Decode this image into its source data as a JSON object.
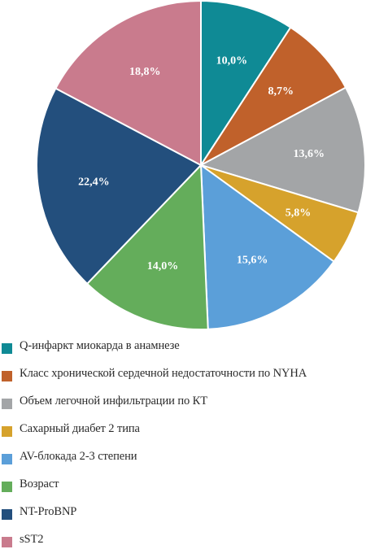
{
  "chart_data": {
    "type": "pie",
    "title": "",
    "series": [
      {
        "name": "Q-инфаркт миокарда в анамнезе",
        "value": 10.0,
        "label": "10,0%",
        "color": "#0f8a95"
      },
      {
        "name": "Класс хронической сердечной недостаточности по NYHA",
        "value": 8.7,
        "label": "8,7%",
        "color": "#c0612b"
      },
      {
        "name": "Объем легочной инфильтрации по КТ",
        "value": 13.6,
        "label": "13,6%",
        "color": "#a3a5a7"
      },
      {
        "name": "Сахарный диабет 2 типа",
        "value": 5.8,
        "label": "5,8%",
        "color": "#d6a22c"
      },
      {
        "name": "AV-блокада 2-3 степени",
        "value": 15.6,
        "label": "15,6%",
        "color": "#5b9fd9"
      },
      {
        "name": "Возраст",
        "value": 14.0,
        "label": "14,0%",
        "color": "#64ad5b"
      },
      {
        "name": "NT-ProBNP",
        "value": 22.4,
        "label": "22,4%",
        "color": "#234f7d"
      },
      {
        "name": "sST2",
        "value": 18.8,
        "label": "18,8%",
        "color": "#c97b8d"
      }
    ],
    "start_angle_deg": 0,
    "direction": "clockwise",
    "legend_position": "bottom"
  }
}
